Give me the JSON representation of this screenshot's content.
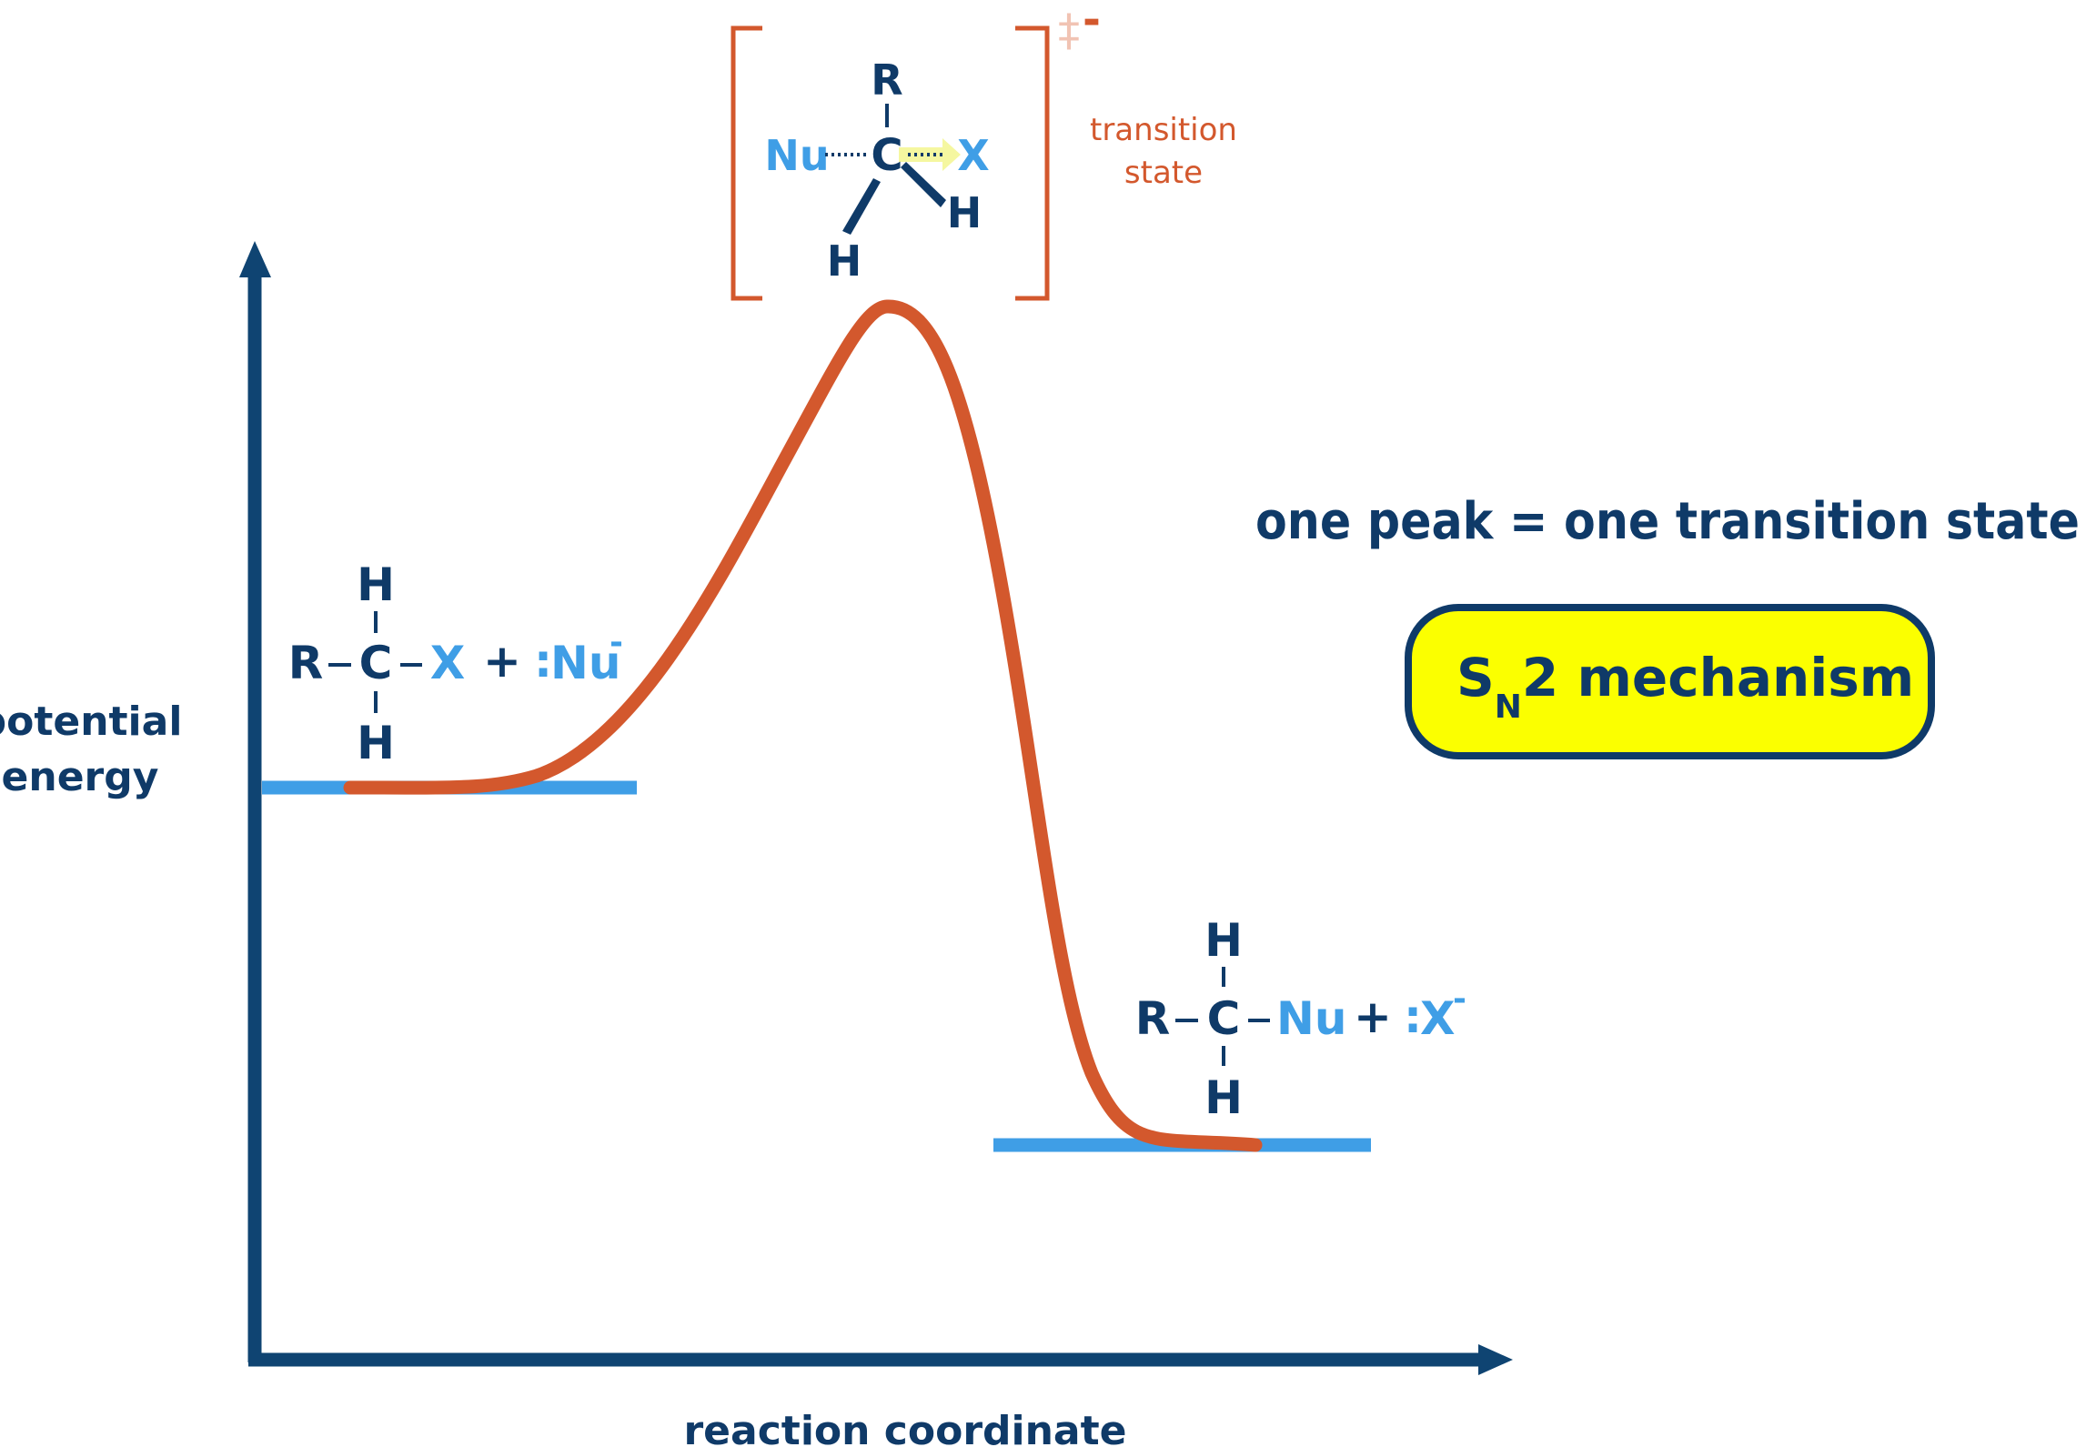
{
  "colors": {
    "axis": "#0f4472",
    "curve": "#d3582d",
    "level": "#3f9ee6",
    "text_dark": "#0f3a68",
    "text_light": "#3f9ee6",
    "bracket": "#d3582d",
    "bracket_mark": "#f1c3b3",
    "badge_fill": "#fbff00",
    "badge_border": "#0f3a68",
    "arrow_hint": "#f5f7a0"
  },
  "axes": {
    "y_label_line1": "potential",
    "y_label_line2": "energy",
    "x_label": "reaction coordinate"
  },
  "reactants": {
    "top_atom": "H",
    "bottom_atom": "H",
    "left_atom": "R",
    "center_atom": "C",
    "right_atom": "X",
    "plus": "+",
    "dots": ":",
    "nucleophile": "Nu",
    "charge": "-"
  },
  "products": {
    "top_atom": "H",
    "bottom_atom": "H",
    "left_atom": "R",
    "center_atom": "C",
    "right_group": "Nu",
    "plus": "+",
    "dots": ":",
    "leaving_group": "X",
    "charge": "-"
  },
  "transition_state": {
    "top_atom": "R",
    "center_atom": "C",
    "nucleophile": "Nu",
    "leaving_group": "X",
    "h_left": "H",
    "h_right": "H",
    "label_line1": "transition",
    "label_line2": "state",
    "double_dagger": "‡",
    "charge": "-"
  },
  "peak_note": "one peak = one transition state",
  "badge": {
    "s": "S",
    "n": "N",
    "rest": "2 mechanism"
  }
}
